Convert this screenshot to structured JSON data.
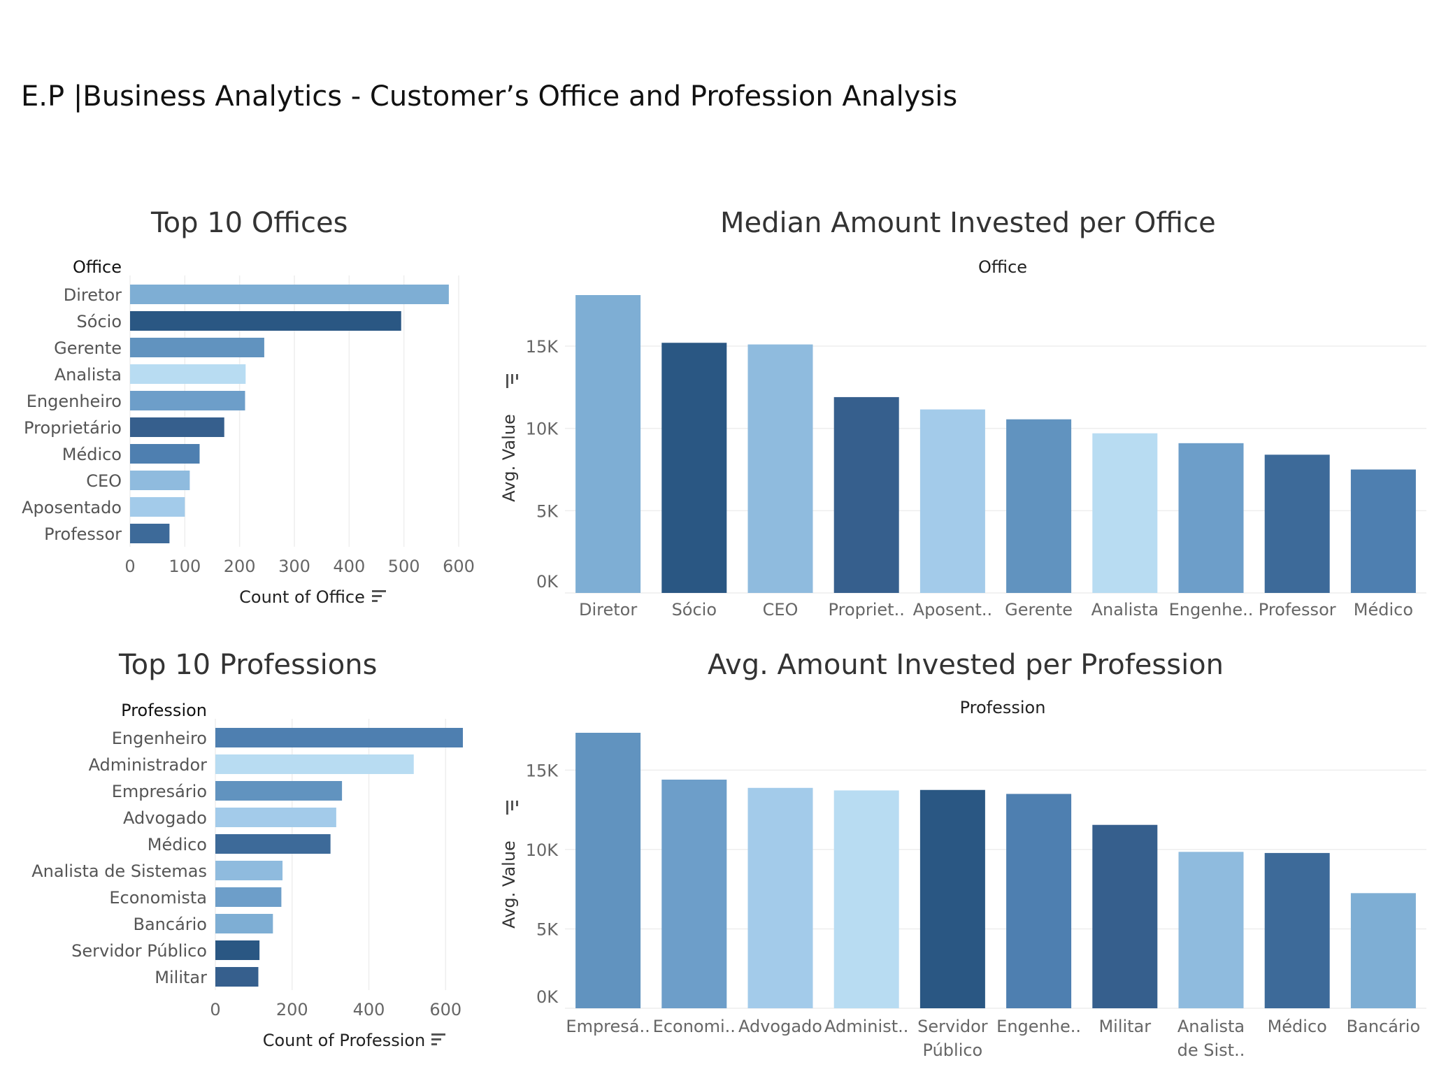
{
  "dashboard": {
    "title": "E.P |Business Analytics -  Customer’s Office and Profession Analysis"
  },
  "chart_data": [
    {
      "id": "top-offices",
      "type": "bar",
      "orientation": "horizontal",
      "title": "Top 10 Offices",
      "row_header": "Office",
      "xlabel": "Count of Office",
      "categories": [
        "Diretor",
        "Sócio",
        "Gerente",
        "Analista",
        "Engenheiro",
        "Proprietário",
        "Médico",
        "CEO",
        "Aposentado",
        "Professor"
      ],
      "values": [
        582,
        495,
        245,
        211,
        210,
        172,
        127,
        109,
        100,
        72
      ],
      "colors": [
        "#7eaed4",
        "#2a5783",
        "#6193bf",
        "#b8dcf2",
        "#6d9ec9",
        "#365f8d",
        "#4e7fb0",
        "#8fbbde",
        "#a3cbea",
        "#3d6a99"
      ],
      "xlim": [
        0,
        600
      ],
      "xticks": [
        0,
        100,
        200,
        300,
        400,
        500,
        600
      ],
      "xtick_labels": [
        "0",
        "100",
        "200",
        "300",
        "400",
        "500",
        "600"
      ],
      "grid": true
    },
    {
      "id": "median-invested-office",
      "type": "bar",
      "orientation": "vertical",
      "title": "Median Amount Invested per Office",
      "column_header": "Office",
      "ylabel": "Avg. Value",
      "categories": [
        "Diretor",
        "Sócio",
        "CEO",
        "Propriet..",
        "Aposent..",
        "Gerente",
        "Analista",
        "Engenhe..",
        "Professor",
        "Médico"
      ],
      "values": [
        18100,
        15200,
        15100,
        11900,
        11150,
        10550,
        9700,
        9100,
        8400,
        7500
      ],
      "colors": [
        "#7eaed4",
        "#2a5783",
        "#8fbbde",
        "#365f8d",
        "#a3cbea",
        "#6193bf",
        "#b8dcf2",
        "#6d9ec9",
        "#3d6a99",
        "#4e7fb0"
      ],
      "ylim": [
        0,
        18100
      ],
      "yticks": [
        0,
        5000,
        10000,
        15000
      ],
      "ytick_labels": [
        "0K",
        "5K",
        "10K",
        "15K"
      ],
      "grid": true
    },
    {
      "id": "top-professions",
      "type": "bar",
      "orientation": "horizontal",
      "title": "Top 10 Professions",
      "row_header": "Profession",
      "xlabel": "Count of Profession",
      "categories": [
        "Engenheiro",
        "Administrador",
        "Empresário",
        "Advogado",
        "Médico",
        "Analista de Sistemas",
        "Economista",
        "Bancário",
        "Servidor Público",
        "Militar"
      ],
      "values": [
        645,
        517,
        330,
        315,
        300,
        175,
        172,
        150,
        115,
        112
      ],
      "colors": [
        "#4e7fb0",
        "#b8dcf2",
        "#6193bf",
        "#a3cbea",
        "#3d6a99",
        "#8fbbde",
        "#6d9ec9",
        "#7eaed4",
        "#2a5783",
        "#365f8d"
      ],
      "xlim": [
        0,
        645
      ],
      "xticks": [
        0,
        200,
        400,
        600
      ],
      "xtick_labels": [
        "0",
        "200",
        "400",
        "600"
      ],
      "grid": true
    },
    {
      "id": "avg-invested-profession",
      "type": "bar",
      "orientation": "vertical",
      "title": "Avg. Amount Invested per Profession",
      "column_header": "Profession",
      "ylabel": "Avg. Value",
      "categories": [
        "Empresá..",
        "Economi..",
        "Advogado",
        "Administ..",
        "Servidor Público",
        "Engenhe..",
        "Militar",
        "Analista de Sist..",
        "Médico",
        "Bancário"
      ],
      "values": [
        17350,
        14400,
        13880,
        13720,
        13750,
        13500,
        11550,
        9850,
        9780,
        7250
      ],
      "colors": [
        "#6193bf",
        "#6d9ec9",
        "#a3cbea",
        "#b8dcf2",
        "#2a5783",
        "#4e7fb0",
        "#365f8d",
        "#8fbbde",
        "#3d6a99",
        "#7eaed4"
      ],
      "ylim": [
        0,
        17350
      ],
      "yticks": [
        0,
        5000,
        10000,
        15000
      ],
      "ytick_labels": [
        "0K",
        "5K",
        "10K",
        "15K"
      ],
      "grid": true
    }
  ]
}
